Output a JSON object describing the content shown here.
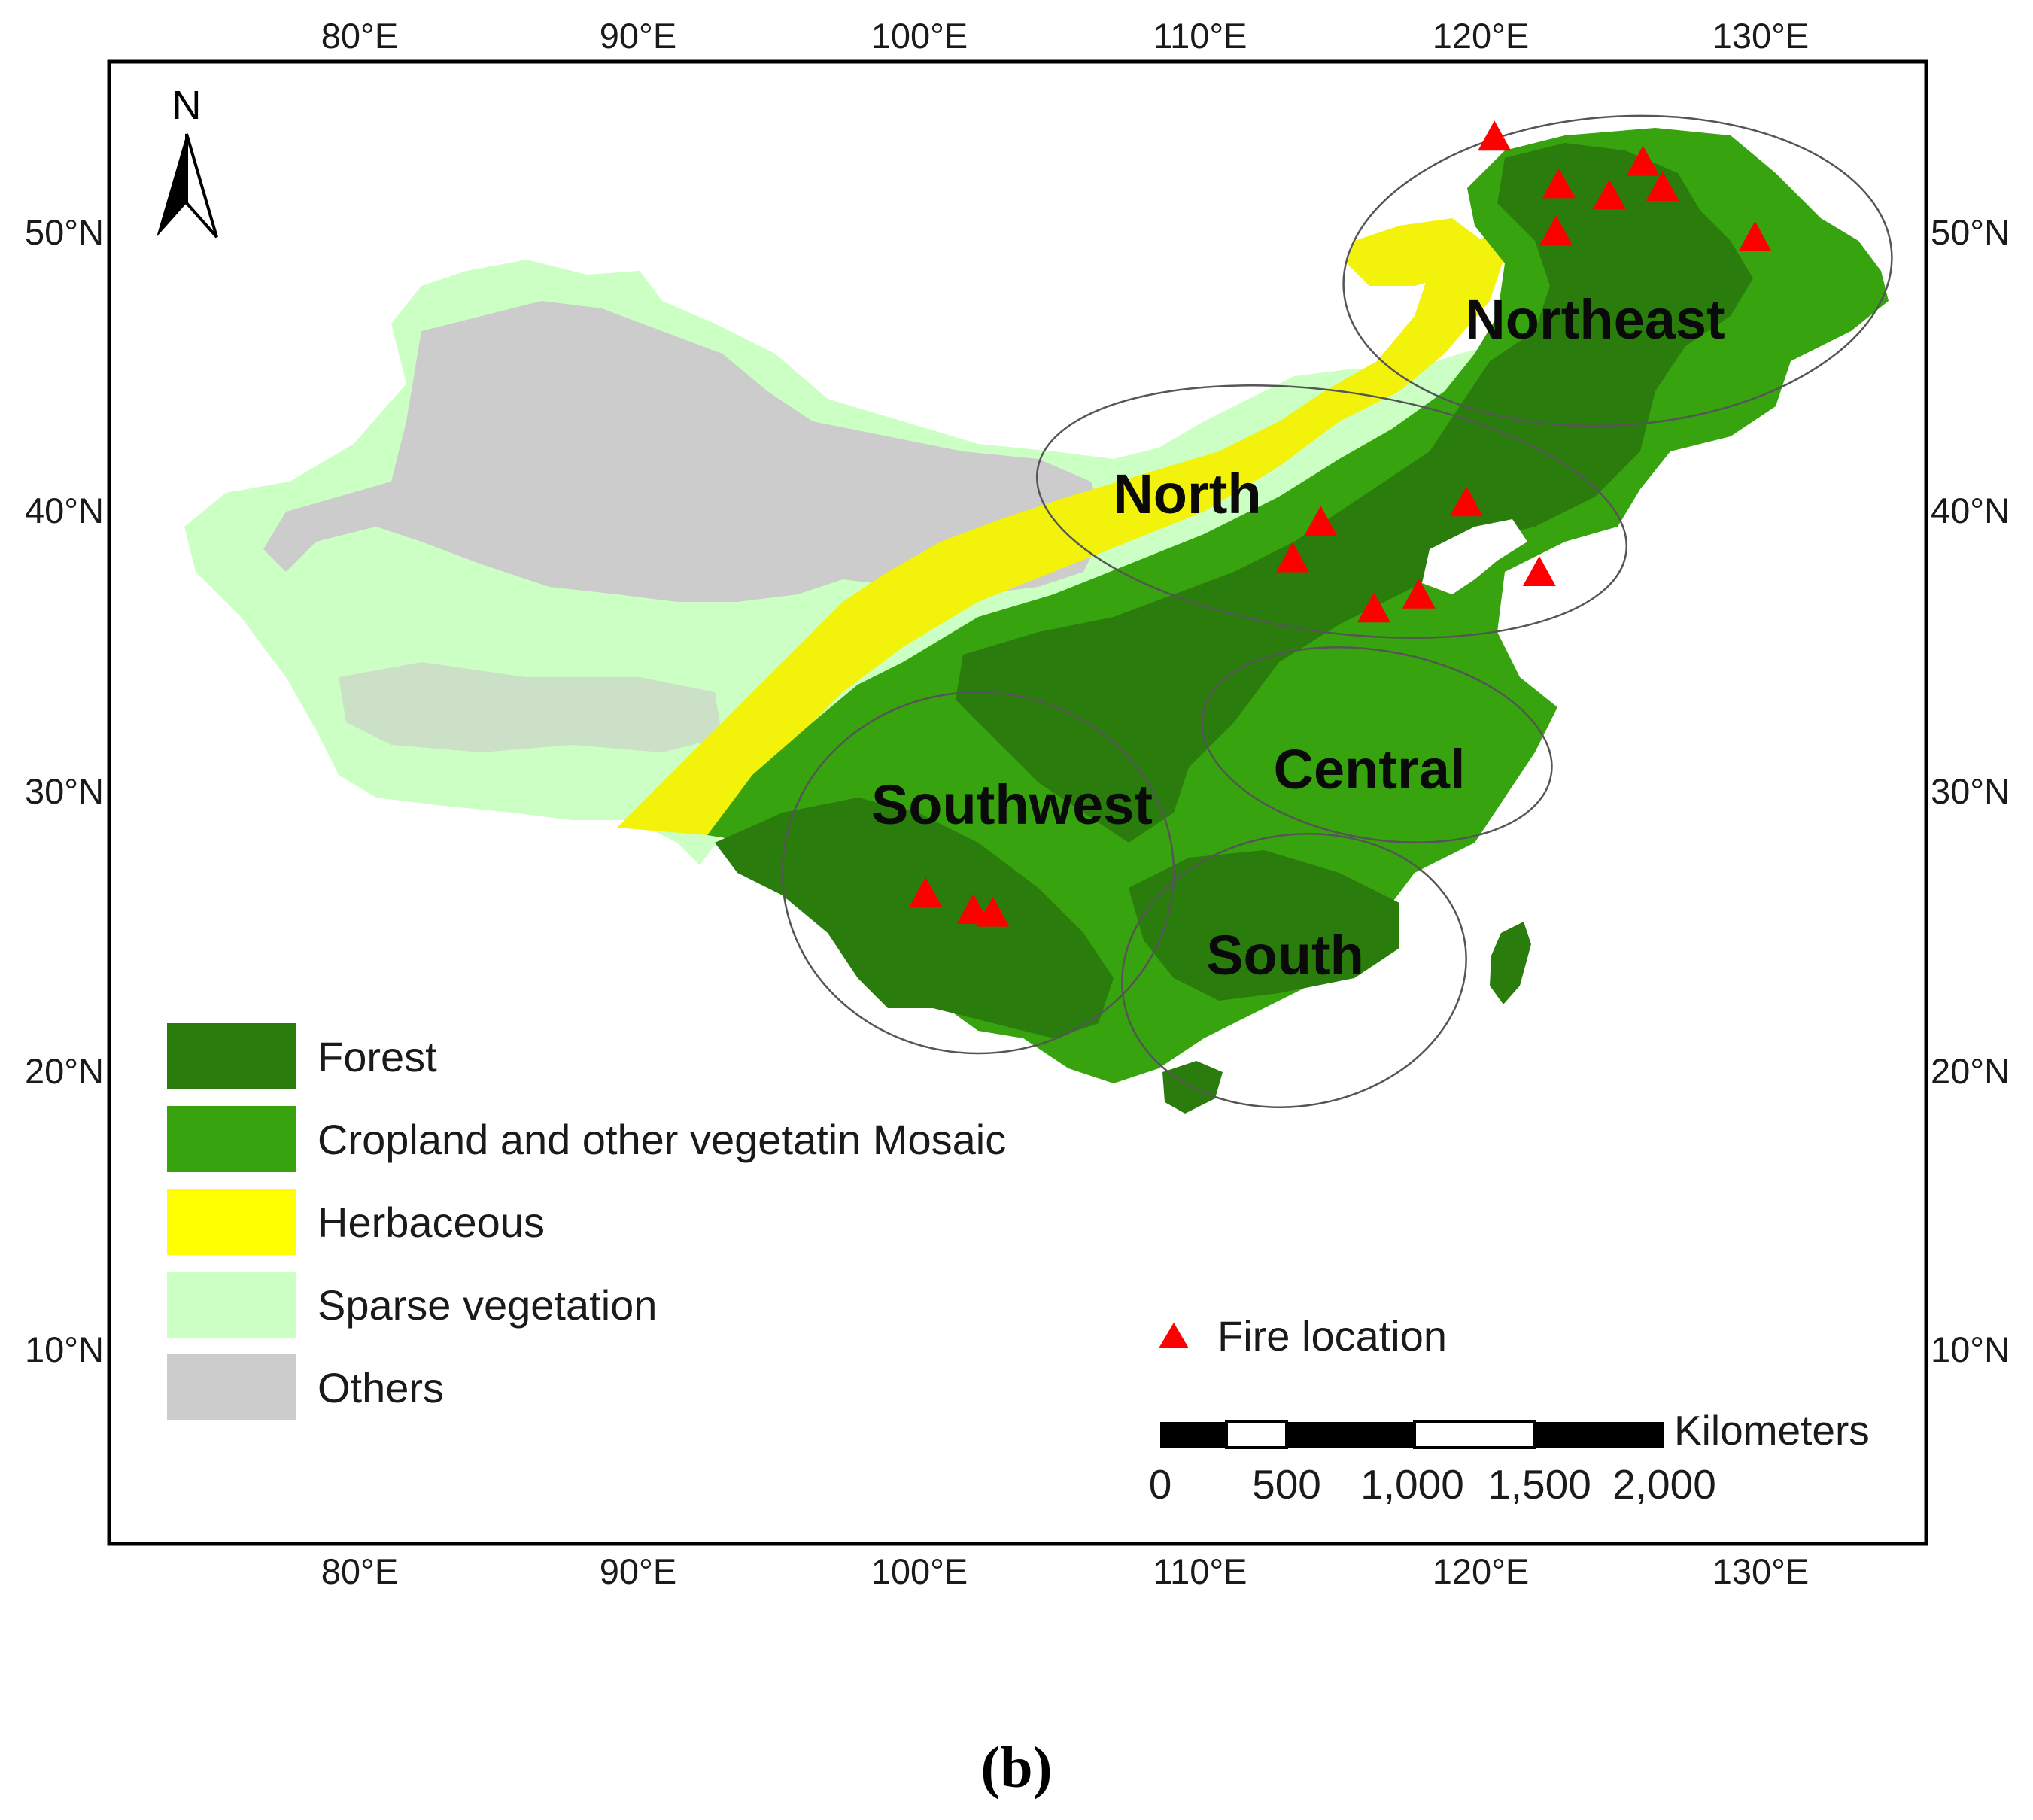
{
  "map": {
    "top_lon_ticks": [
      "80°E",
      "90°E",
      "100°E",
      "110°E",
      "120°E",
      "130°E"
    ],
    "bottom_lon_ticks": [
      "80°E",
      "90°E",
      "100°E",
      "110°E",
      "120°E",
      "130°E"
    ],
    "left_lat_ticks": [
      "50°N",
      "40°N",
      "30°N",
      "20°N",
      "10°N"
    ],
    "right_lat_ticks": [
      "50°N",
      "40°N",
      "30°N",
      "20°N",
      "10°N"
    ],
    "north_arrow_label": "N",
    "regions": [
      "Northeast",
      "North",
      "Central",
      "Southwest",
      "South"
    ]
  },
  "legend": {
    "items": [
      {
        "label": "Forest",
        "color": "#2a7d0c"
      },
      {
        "label": "Cropland and other vegetatin Mosaic",
        "color": "#37a30f"
      },
      {
        "label": "Herbaceous",
        "color": "#ffff00"
      },
      {
        "label": "Sparse vegetation",
        "color": "#ccffc4"
      },
      {
        "label": "Others",
        "color": "#cccccc"
      }
    ],
    "fire_label": "Fire location",
    "fire_color": "#ff0000"
  },
  "scale_bar": {
    "unit": "Kilometers",
    "ticks": [
      "0",
      "500",
      "1,000",
      "1,500",
      "2,000"
    ]
  },
  "fire_locations": [
    {
      "lon": 120.5,
      "lat": 53.2
    },
    {
      "lon": 122.8,
      "lat": 51.5
    },
    {
      "lon": 124.6,
      "lat": 51.1
    },
    {
      "lon": 125.8,
      "lat": 52.3
    },
    {
      "lon": 126.5,
      "lat": 51.4
    },
    {
      "lon": 122.7,
      "lat": 49.8
    },
    {
      "lon": 129.8,
      "lat": 49.6
    },
    {
      "lon": 119.5,
      "lat": 40.1
    },
    {
      "lon": 114.3,
      "lat": 39.4
    },
    {
      "lon": 113.3,
      "lat": 38.1
    },
    {
      "lon": 116.2,
      "lat": 36.3
    },
    {
      "lon": 117.8,
      "lat": 36.8
    },
    {
      "lon": 122.1,
      "lat": 37.6
    },
    {
      "lon": 100.2,
      "lat": 26.1
    },
    {
      "lon": 101.9,
      "lat": 25.5
    },
    {
      "lon": 102.6,
      "lat": 25.4
    }
  ],
  "caption": "(b)"
}
